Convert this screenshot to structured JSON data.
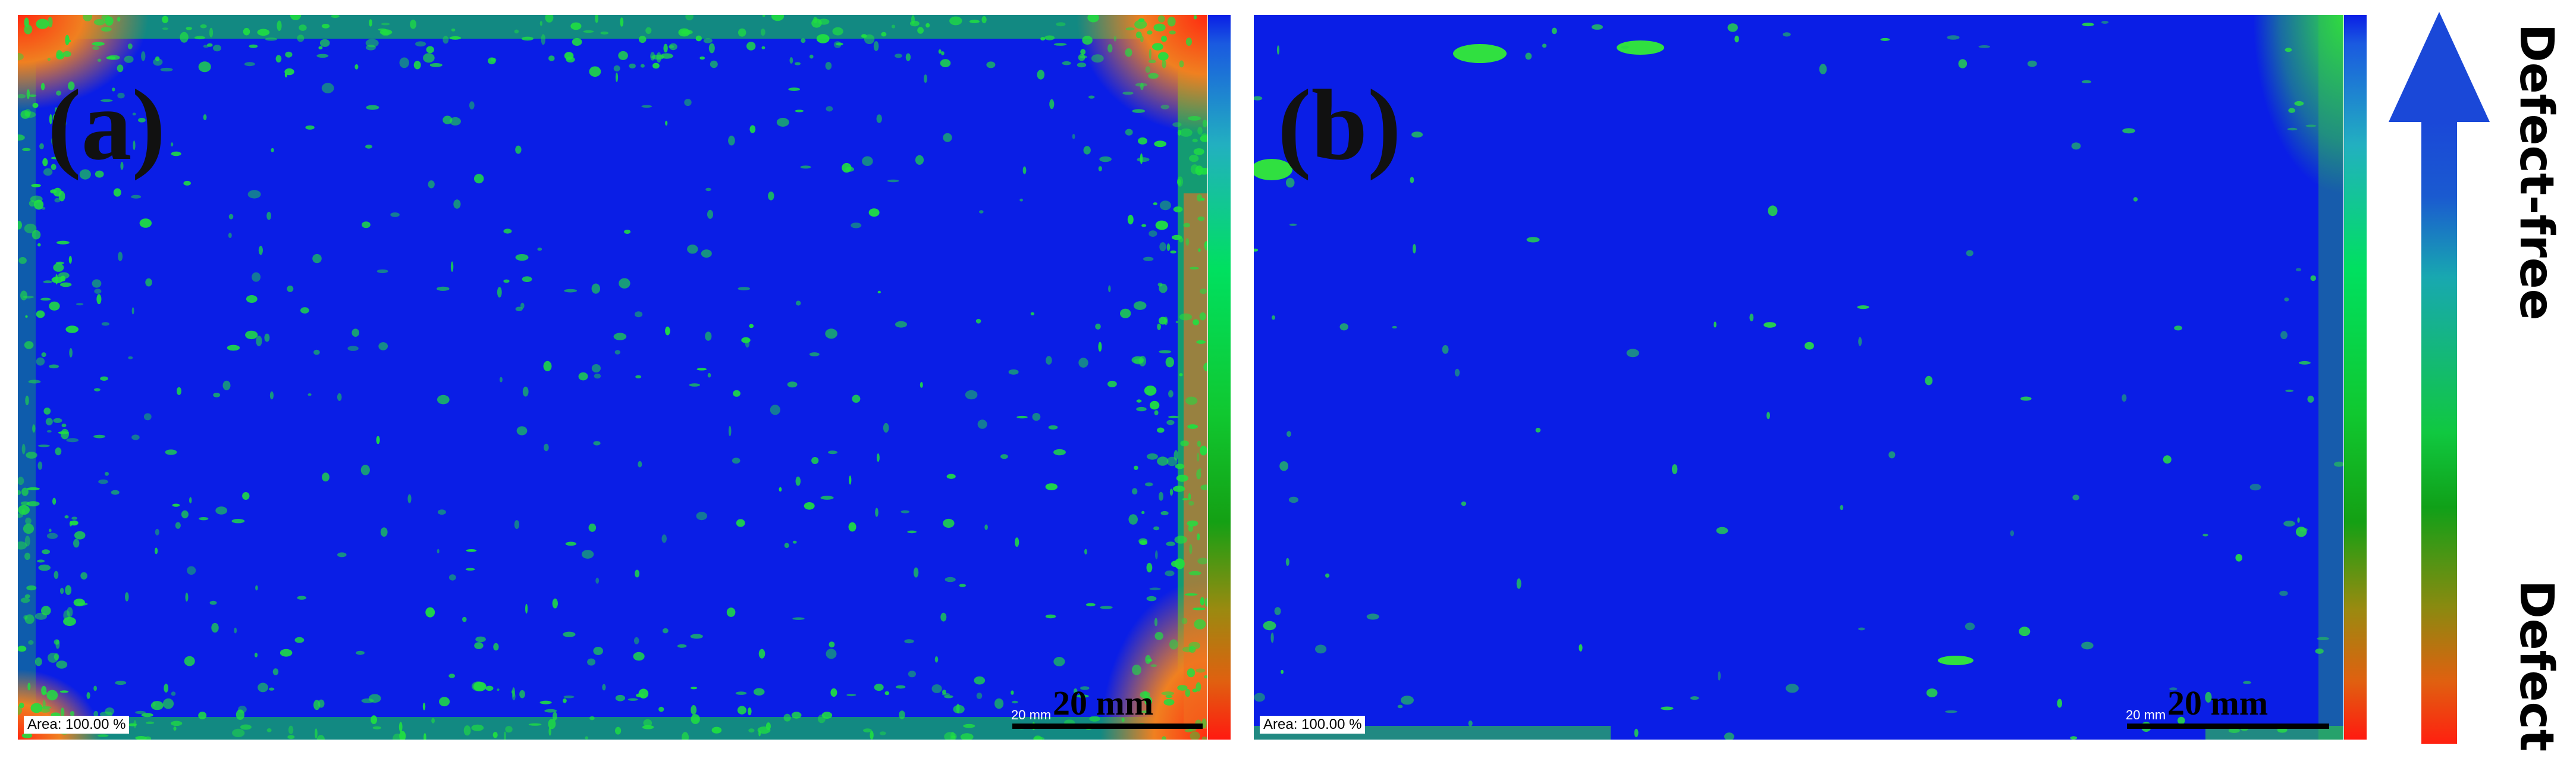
{
  "panels": [
    {
      "label": "(a)",
      "area": "Area: 100.00 %",
      "scale_small": "20 mm",
      "scale_big": "20 mm"
    },
    {
      "label": "(b)",
      "area": "Area: 100.00 %",
      "scale_small": "20 mm",
      "scale_big": "20 mm"
    }
  ],
  "legend": {
    "top": "Defect-free",
    "bottom": "Defect"
  },
  "colors": {
    "defect_free": "#0a1ee6",
    "transition": "#00e060",
    "defect": "#ff1a10"
  }
}
